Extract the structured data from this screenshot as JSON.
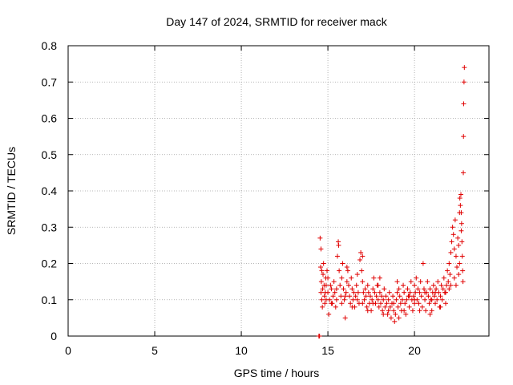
{
  "chart_data": {
    "type": "scatter",
    "title": "Day 147 of 2024, SRMTID for receiver mack",
    "xlabel": "GPS time / hours",
    "ylabel": "SRMTID / TECUs",
    "xlim": [
      0,
      24.3
    ],
    "ylim": [
      0,
      0.8
    ],
    "xticks": [
      0,
      5,
      10,
      15,
      20
    ],
    "xtick_labels": [
      "0",
      "5",
      "10",
      "15",
      "20"
    ],
    "yticks": [
      0,
      0.1,
      0.2,
      0.3,
      0.4,
      0.5,
      0.6,
      0.7,
      0.8
    ],
    "ytick_labels": [
      "0",
      "0.1",
      "0.2",
      "0.3",
      "0.4",
      "0.5",
      "0.6",
      "0.7",
      "0.8"
    ],
    "grid": true,
    "marker": "plus",
    "series": [
      {
        "name": "SRMTID",
        "color": "#e00000",
        "points": [
          [
            14.48,
            0.0
          ],
          [
            14.52,
            0.0
          ],
          [
            14.55,
            0.27
          ],
          [
            14.6,
            0.24
          ],
          [
            14.58,
            0.19
          ],
          [
            14.62,
            0.15
          ],
          [
            14.6,
            0.12
          ],
          [
            14.65,
            0.1
          ],
          [
            14.68,
            0.08
          ],
          [
            14.7,
            0.13
          ],
          [
            14.72,
            0.17
          ],
          [
            14.75,
            0.2
          ],
          [
            14.78,
            0.14
          ],
          [
            14.8,
            0.11
          ],
          [
            14.82,
            0.09
          ],
          [
            14.85,
            0.12
          ],
          [
            14.88,
            0.16
          ],
          [
            14.9,
            0.1
          ],
          [
            14.95,
            0.18
          ],
          [
            15.0,
            0.12
          ],
          [
            15.05,
            0.06
          ],
          [
            15.1,
            0.1
          ],
          [
            15.15,
            0.14
          ],
          [
            15.2,
            0.13
          ],
          [
            15.25,
            0.09
          ],
          [
            15.3,
            0.11
          ],
          [
            15.35,
            0.15
          ],
          [
            15.4,
            0.12
          ],
          [
            15.45,
            0.08
          ],
          [
            15.5,
            0.1
          ],
          [
            15.55,
            0.22
          ],
          [
            15.6,
            0.26
          ],
          [
            15.62,
            0.25
          ],
          [
            15.65,
            0.18
          ],
          [
            15.7,
            0.14
          ],
          [
            15.75,
            0.11
          ],
          [
            15.8,
            0.16
          ],
          [
            15.85,
            0.2
          ],
          [
            15.9,
            0.13
          ],
          [
            15.95,
            0.1
          ],
          [
            16.0,
            0.05
          ],
          [
            16.05,
            0.12
          ],
          [
            16.1,
            0.15
          ],
          [
            16.15,
            0.18
          ],
          [
            16.2,
            0.14
          ],
          [
            16.25,
            0.11
          ],
          [
            16.3,
            0.09
          ],
          [
            16.35,
            0.16
          ],
          [
            16.4,
            0.13
          ],
          [
            16.45,
            0.1
          ],
          [
            16.5,
            0.12
          ],
          [
            16.55,
            0.08
          ],
          [
            16.6,
            0.11
          ],
          [
            16.65,
            0.14
          ],
          [
            16.7,
            0.17
          ],
          [
            16.75,
            0.12
          ],
          [
            16.8,
            0.09
          ],
          [
            16.85,
            0.21
          ],
          [
            16.9,
            0.23
          ],
          [
            16.95,
            0.18
          ],
          [
            17.0,
            0.15
          ],
          [
            17.05,
            0.12
          ],
          [
            17.1,
            0.1
          ],
          [
            17.15,
            0.13
          ],
          [
            17.2,
            0.11
          ],
          [
            17.25,
            0.08
          ],
          [
            17.3,
            0.14
          ],
          [
            17.35,
            0.12
          ],
          [
            17.4,
            0.09
          ],
          [
            17.45,
            0.11
          ],
          [
            17.5,
            0.07
          ],
          [
            17.55,
            0.1
          ],
          [
            17.6,
            0.13
          ],
          [
            17.65,
            0.16
          ],
          [
            17.7,
            0.12
          ],
          [
            17.75,
            0.09
          ],
          [
            17.8,
            0.11
          ],
          [
            17.85,
            0.14
          ],
          [
            17.9,
            0.1
          ],
          [
            17.95,
            0.08
          ],
          [
            18.0,
            0.12
          ],
          [
            18.05,
            0.09
          ],
          [
            18.1,
            0.11
          ],
          [
            18.15,
            0.07
          ],
          [
            18.2,
            0.1
          ],
          [
            18.25,
            0.13
          ],
          [
            18.3,
            0.08
          ],
          [
            18.35,
            0.11
          ],
          [
            18.4,
            0.09
          ],
          [
            18.45,
            0.06
          ],
          [
            18.5,
            0.1
          ],
          [
            18.55,
            0.12
          ],
          [
            18.6,
            0.08
          ],
          [
            18.65,
            0.05
          ],
          [
            18.7,
            0.09
          ],
          [
            18.75,
            0.11
          ],
          [
            18.8,
            0.07
          ],
          [
            18.85,
            0.04
          ],
          [
            18.9,
            0.06
          ],
          [
            18.95,
            0.1
          ],
          [
            19.0,
            0.12
          ],
          [
            19.05,
            0.08
          ],
          [
            19.1,
            0.13
          ],
          [
            19.15,
            0.11
          ],
          [
            19.2,
            0.09
          ],
          [
            19.25,
            0.07
          ],
          [
            19.3,
            0.1
          ],
          [
            19.35,
            0.14
          ],
          [
            19.4,
            0.12
          ],
          [
            19.45,
            0.09
          ],
          [
            19.5,
            0.06
          ],
          [
            19.55,
            0.1
          ],
          [
            19.6,
            0.13
          ],
          [
            19.65,
            0.11
          ],
          [
            19.7,
            0.08
          ],
          [
            19.75,
            0.12
          ],
          [
            19.8,
            0.15
          ],
          [
            19.85,
            0.1
          ],
          [
            19.9,
            0.07
          ],
          [
            19.95,
            0.11
          ],
          [
            20.0,
            0.14
          ],
          [
            20.05,
            0.12
          ],
          [
            20.1,
            0.16
          ],
          [
            20.15,
            0.1
          ],
          [
            20.2,
            0.13
          ],
          [
            20.25,
            0.09
          ],
          [
            20.3,
            0.12
          ],
          [
            20.35,
            0.15
          ],
          [
            20.4,
            0.11
          ],
          [
            20.45,
            0.08
          ],
          [
            20.5,
            0.2
          ],
          [
            20.55,
            0.13
          ],
          [
            20.6,
            0.1
          ],
          [
            20.65,
            0.07
          ],
          [
            20.7,
            0.12
          ],
          [
            20.75,
            0.15
          ],
          [
            20.8,
            0.11
          ],
          [
            20.85,
            0.09
          ],
          [
            20.9,
            0.13
          ],
          [
            20.95,
            0.1
          ],
          [
            21.0,
            0.07
          ],
          [
            21.05,
            0.12
          ],
          [
            21.1,
            0.14
          ],
          [
            21.15,
            0.11
          ],
          [
            21.2,
            0.09
          ],
          [
            21.25,
            0.13
          ],
          [
            21.3,
            0.1
          ],
          [
            21.35,
            0.15
          ],
          [
            21.4,
            0.12
          ],
          [
            21.45,
            0.08
          ],
          [
            21.5,
            0.11
          ],
          [
            21.55,
            0.14
          ],
          [
            21.6,
            0.1
          ],
          [
            21.65,
            0.13
          ],
          [
            21.7,
            0.16
          ],
          [
            21.75,
            0.12
          ],
          [
            21.8,
            0.09
          ],
          [
            21.85,
            0.14
          ],
          [
            21.9,
            0.18
          ],
          [
            21.95,
            0.15
          ],
          [
            22.0,
            0.2
          ],
          [
            22.05,
            0.17
          ],
          [
            22.1,
            0.23
          ],
          [
            22.15,
            0.26
          ],
          [
            22.2,
            0.3
          ],
          [
            22.25,
            0.28
          ],
          [
            22.3,
            0.24
          ],
          [
            22.35,
            0.32
          ],
          [
            22.4,
            0.22
          ],
          [
            22.45,
            0.19
          ],
          [
            22.5,
            0.27
          ],
          [
            22.55,
            0.25
          ],
          [
            22.6,
            0.34
          ],
          [
            22.62,
            0.38
          ],
          [
            22.65,
            0.36
          ],
          [
            22.68,
            0.39
          ],
          [
            22.7,
            0.34
          ],
          [
            22.72,
            0.31
          ],
          [
            22.74,
            0.26
          ],
          [
            22.76,
            0.22
          ],
          [
            22.78,
            0.18
          ],
          [
            22.8,
            0.15
          ],
          [
            22.82,
            0.45
          ],
          [
            22.83,
            0.55
          ],
          [
            22.84,
            0.64
          ],
          [
            22.86,
            0.7
          ],
          [
            22.88,
            0.74
          ],
          [
            22.7,
            0.29
          ],
          [
            22.6,
            0.2
          ],
          [
            22.55,
            0.17
          ],
          [
            22.4,
            0.14
          ],
          [
            22.3,
            0.16
          ],
          [
            14.65,
            0.18
          ],
          [
            14.9,
            0.14
          ],
          [
            15.2,
            0.09
          ],
          [
            15.5,
            0.13
          ],
          [
            15.8,
            0.09
          ],
          [
            16.1,
            0.19
          ],
          [
            16.4,
            0.08
          ],
          [
            16.7,
            0.1
          ],
          [
            17.0,
            0.09
          ],
          [
            17.3,
            0.07
          ],
          [
            17.6,
            0.09
          ],
          [
            17.9,
            0.14
          ],
          [
            18.2,
            0.06
          ],
          [
            18.5,
            0.07
          ],
          [
            18.8,
            0.09
          ],
          [
            19.1,
            0.05
          ],
          [
            19.4,
            0.07
          ],
          [
            19.7,
            0.11
          ],
          [
            20.0,
            0.09
          ],
          [
            20.3,
            0.07
          ],
          [
            20.6,
            0.12
          ],
          [
            20.9,
            0.06
          ],
          [
            21.2,
            0.12
          ],
          [
            21.5,
            0.08
          ],
          [
            21.8,
            0.12
          ],
          [
            22.1,
            0.14
          ],
          [
            15.0,
            0.16
          ],
          [
            16.0,
            0.11
          ],
          [
            17.0,
            0.22
          ],
          [
            18.0,
            0.16
          ],
          [
            19.0,
            0.15
          ],
          [
            20.0,
            0.1
          ],
          [
            21.0,
            0.1
          ],
          [
            22.0,
            0.13
          ]
        ]
      }
    ]
  }
}
